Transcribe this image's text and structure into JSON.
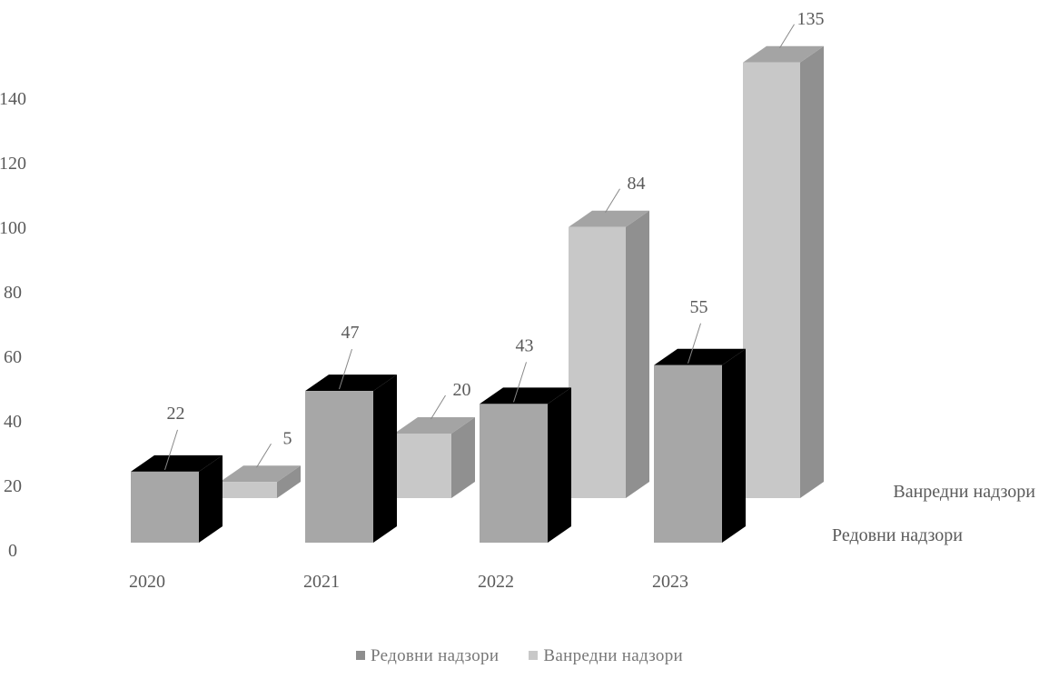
{
  "chart_data": {
    "type": "bar",
    "style": "3d-clustered-column",
    "categories": [
      "2020",
      "2021",
      "2022",
      "2023"
    ],
    "series": [
      {
        "name": "Редовни надзори",
        "values": [
          22,
          47,
          43,
          55
        ],
        "color": "#a7a7a7"
      },
      {
        "name": "Ванредни надзори",
        "values": [
          5,
          20,
          84,
          135
        ],
        "color": "#c8c8c8"
      }
    ],
    "y_ticks": [
      "0",
      "20",
      "40",
      "60",
      "80",
      "100",
      "120",
      "140"
    ],
    "ylim": [
      0,
      140
    ],
    "grid": false,
    "legend_position": "bottom"
  }
}
